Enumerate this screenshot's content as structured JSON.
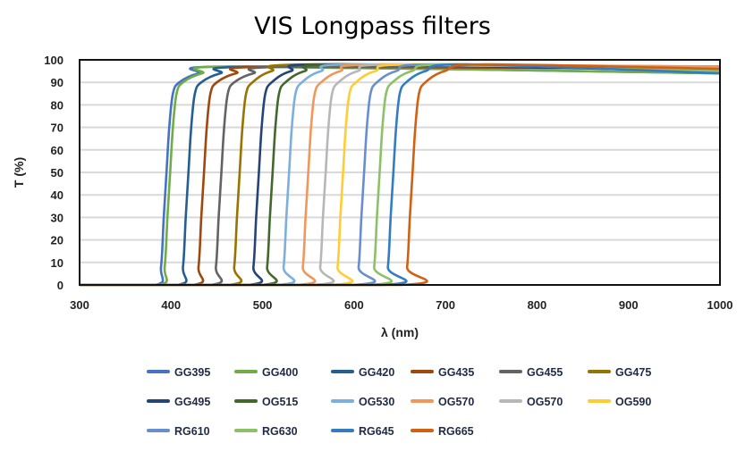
{
  "chart_data": {
    "type": "line",
    "title": "VIS Longpass filters",
    "xlabel": "λ (nm)",
    "ylabel": "T (%)",
    "xlim": [
      300,
      1000
    ],
    "ylim": [
      0,
      100
    ],
    "xticks": [
      300,
      400,
      500,
      600,
      700,
      800,
      900,
      1000
    ],
    "yticks": [
      0,
      10,
      20,
      30,
      40,
      50,
      60,
      70,
      80,
      90,
      100
    ],
    "grid": "horizontal",
    "legend": "bottom",
    "series": [
      {
        "name": "GG395",
        "color": "#4472c4",
        "points": [
          [
            300,
            0
          ],
          [
            383,
            0
          ],
          [
            389,
            8
          ],
          [
            392,
            30
          ],
          [
            395,
            50
          ],
          [
            398,
            70
          ],
          [
            402,
            85
          ],
          [
            409,
            90
          ],
          [
            430,
            94
          ],
          [
            475,
            97
          ],
          [
            1000,
            94
          ]
        ]
      },
      {
        "name": "GG400",
        "color": "#70ad47",
        "points": [
          [
            300,
            0
          ],
          [
            387,
            0
          ],
          [
            393,
            8
          ],
          [
            396,
            30
          ],
          [
            399,
            50
          ],
          [
            402,
            70
          ],
          [
            406,
            85
          ],
          [
            413,
            90
          ],
          [
            434,
            94
          ],
          [
            479,
            97
          ],
          [
            1000,
            94
          ]
        ]
      },
      {
        "name": "GG420",
        "color": "#255e91",
        "points": [
          [
            300,
            0
          ],
          [
            407,
            0
          ],
          [
            413,
            8
          ],
          [
            416,
            30
          ],
          [
            419,
            50
          ],
          [
            422,
            70
          ],
          [
            426,
            85
          ],
          [
            433,
            90
          ],
          [
            454,
            94
          ],
          [
            499,
            97
          ],
          [
            1000,
            96
          ]
        ]
      },
      {
        "name": "GG435",
        "color": "#9e480e",
        "points": [
          [
            300,
            0
          ],
          [
            424,
            0
          ],
          [
            430,
            8
          ],
          [
            433,
            30
          ],
          [
            436,
            50
          ],
          [
            439,
            70
          ],
          [
            443,
            85
          ],
          [
            450,
            90
          ],
          [
            471,
            94
          ],
          [
            516,
            97
          ],
          [
            1000,
            96
          ]
        ]
      },
      {
        "name": "GG455",
        "color": "#636363",
        "points": [
          [
            300,
            0
          ],
          [
            443,
            0
          ],
          [
            449,
            8
          ],
          [
            452,
            30
          ],
          [
            455,
            50
          ],
          [
            458,
            70
          ],
          [
            462,
            85
          ],
          [
            469,
            90
          ],
          [
            490,
            94
          ],
          [
            535,
            97
          ],
          [
            1000,
            97
          ]
        ]
      },
      {
        "name": "GG475",
        "color": "#997300",
        "points": [
          [
            300,
            0
          ],
          [
            463,
            0
          ],
          [
            469,
            8
          ],
          [
            472,
            30
          ],
          [
            475,
            50
          ],
          [
            478,
            70
          ],
          [
            482,
            85
          ],
          [
            489,
            90
          ],
          [
            510,
            95
          ],
          [
            555,
            98
          ],
          [
            1000,
            97
          ]
        ]
      },
      {
        "name": "GG495",
        "color": "#264478",
        "points": [
          [
            300,
            0
          ],
          [
            484,
            0
          ],
          [
            490,
            8
          ],
          [
            493,
            30
          ],
          [
            496,
            50
          ],
          [
            499,
            70
          ],
          [
            503,
            85
          ],
          [
            510,
            90
          ],
          [
            531,
            95
          ],
          [
            576,
            98
          ],
          [
            1000,
            95
          ]
        ]
      },
      {
        "name": "OG515",
        "color": "#43682b",
        "points": [
          [
            300,
            0
          ],
          [
            499,
            0
          ],
          [
            505,
            8
          ],
          [
            508,
            30
          ],
          [
            511,
            50
          ],
          [
            514,
            70
          ],
          [
            518,
            85
          ],
          [
            525,
            90
          ],
          [
            546,
            95
          ],
          [
            591,
            98
          ],
          [
            1000,
            96
          ]
        ]
      },
      {
        "name": "OG530",
        "color": "#7cafdd",
        "points": [
          [
            300,
            0
          ],
          [
            517,
            0
          ],
          [
            523,
            8
          ],
          [
            526,
            30
          ],
          [
            529,
            50
          ],
          [
            532,
            70
          ],
          [
            536,
            85
          ],
          [
            543,
            90
          ],
          [
            564,
            95
          ],
          [
            609,
            98
          ],
          [
            1000,
            96
          ]
        ]
      },
      {
        "name": "OG570",
        "color": "#f1975a",
        "points": [
          [
            300,
            0
          ],
          [
            538,
            0
          ],
          [
            544,
            8
          ],
          [
            547,
            30
          ],
          [
            550,
            50
          ],
          [
            553,
            70
          ],
          [
            557,
            85
          ],
          [
            564,
            90
          ],
          [
            585,
            95
          ],
          [
            630,
            98
          ],
          [
            1000,
            97
          ]
        ]
      },
      {
        "name": "OG570",
        "color": "#b7b7b7",
        "points": [
          [
            300,
            0
          ],
          [
            557,
            0
          ],
          [
            563,
            8
          ],
          [
            566,
            30
          ],
          [
            569,
            50
          ],
          [
            572,
            70
          ],
          [
            576,
            85
          ],
          [
            583,
            90
          ],
          [
            604,
            95
          ],
          [
            649,
            98
          ],
          [
            1000,
            96
          ]
        ]
      },
      {
        "name": "OG590",
        "color": "#ffcd33",
        "points": [
          [
            300,
            0
          ],
          [
            576,
            0
          ],
          [
            582,
            8
          ],
          [
            585,
            30
          ],
          [
            588,
            50
          ],
          [
            591,
            70
          ],
          [
            595,
            85
          ],
          [
            602,
            90
          ],
          [
            623,
            95
          ],
          [
            668,
            98
          ],
          [
            1000,
            96
          ]
        ]
      },
      {
        "name": "RG610",
        "color": "#698ed0",
        "points": [
          [
            300,
            0
          ],
          [
            599,
            0
          ],
          [
            605,
            8
          ],
          [
            608,
            30
          ],
          [
            611,
            50
          ],
          [
            614,
            70
          ],
          [
            618,
            85
          ],
          [
            625,
            90
          ],
          [
            646,
            95
          ],
          [
            691,
            98
          ],
          [
            1000,
            95
          ]
        ]
      },
      {
        "name": "RG630",
        "color": "#8cc168",
        "points": [
          [
            300,
            0
          ],
          [
            616,
            0
          ],
          [
            622,
            8
          ],
          [
            625,
            30
          ],
          [
            628,
            50
          ],
          [
            631,
            70
          ],
          [
            635,
            85
          ],
          [
            642,
            90
          ],
          [
            663,
            95
          ],
          [
            708,
            98
          ],
          [
            1000,
            95
          ]
        ]
      },
      {
        "name": "RG645",
        "color": "#327dc2",
        "points": [
          [
            300,
            0
          ],
          [
            631,
            0
          ],
          [
            637,
            8
          ],
          [
            640,
            30
          ],
          [
            643,
            50
          ],
          [
            646,
            70
          ],
          [
            650,
            85
          ],
          [
            657,
            90
          ],
          [
            678,
            95
          ],
          [
            723,
            98
          ],
          [
            1000,
            94
          ]
        ]
      },
      {
        "name": "RG665",
        "color": "#d26012",
        "points": [
          [
            300,
            0
          ],
          [
            652,
            0
          ],
          [
            658,
            8
          ],
          [
            661,
            30
          ],
          [
            664,
            50
          ],
          [
            667,
            70
          ],
          [
            671,
            85
          ],
          [
            678,
            90
          ],
          [
            699,
            95
          ],
          [
            744,
            98
          ],
          [
            1000,
            96
          ]
        ]
      }
    ]
  }
}
